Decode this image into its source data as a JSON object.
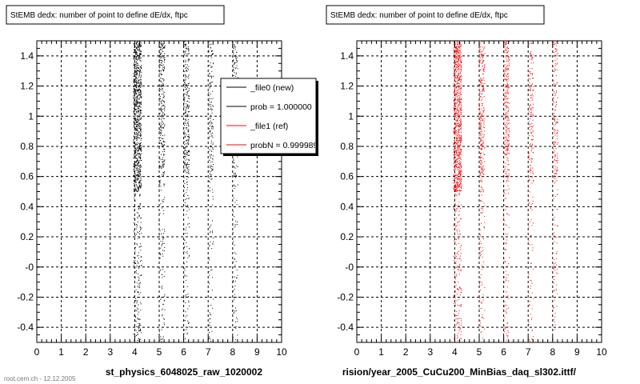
{
  "chart_data": [
    {
      "type": "scatter",
      "title": "StEMB dedx: number of point to define dE/dx, ftpc",
      "xlabel": "st_physics_6048025_raw_1020002",
      "ylabel": "",
      "xlim": [
        0,
        10
      ],
      "ylim": [
        -0.5,
        1.5
      ],
      "x_ticks": [
        0,
        1,
        2,
        3,
        4,
        5,
        6,
        7,
        8,
        9,
        10
      ],
      "y_ticks": [
        {
          "value": -0.4,
          "label": "-0.4"
        },
        {
          "value": -0.2,
          "label": "-0.2"
        },
        {
          "value": 0,
          "label": "-0"
        },
        {
          "value": 0.2,
          "label": "0.2"
        },
        {
          "value": 0.4,
          "label": "0.4"
        },
        {
          "value": 0.6,
          "label": "0.6"
        },
        {
          "value": 0.8,
          "label": "0.8"
        },
        {
          "value": 1,
          "label": "1"
        },
        {
          "value": 1.2,
          "label": "1.2"
        },
        {
          "value": 1.4,
          "label": "1.4"
        }
      ],
      "grid": true,
      "legend_position": "top-right",
      "series": [
        {
          "color": "#000000",
          "clusters": [
            {
              "x": 4.1,
              "y_range": [
                -0.5,
                1.5
              ],
              "density": "high",
              "dense_above": 0.5
            },
            {
              "x": 5.1,
              "y_range": [
                -0.5,
                1.5
              ],
              "density": "medium",
              "dense_above": 0.6
            },
            {
              "x": 6.1,
              "y_range": [
                -0.5,
                1.5
              ],
              "density": "medium",
              "dense_above": 0.6
            },
            {
              "x": 7.1,
              "y_range": [
                -0.5,
                1.5
              ],
              "density": "low",
              "dense_above": 0.6
            },
            {
              "x": 8.1,
              "y_range": [
                -0.5,
                1.5
              ],
              "density": "low",
              "dense_above": 0.6
            }
          ]
        }
      ],
      "legend": [
        {
          "label": "_file0 (new)",
          "color": "#000000"
        },
        {
          "label": "prob = 1.000000",
          "color": "#000000"
        },
        {
          "label": "_file1 (ref)",
          "color": "#ff0000"
        },
        {
          "label": "probN = 0.999989",
          "color": "#ff0000"
        }
      ]
    },
    {
      "type": "scatter",
      "title": "StEMB dedx: number of point to define dE/dx, ftpc",
      "xlabel": "rision/year_2005_CuCu200_MinBias_daq_sl302.ittf/",
      "ylabel": "",
      "xlim": [
        0,
        10
      ],
      "ylim": [
        -0.5,
        1.5
      ],
      "x_ticks": [
        0,
        1,
        2,
        3,
        4,
        5,
        6,
        7,
        8,
        9,
        10
      ],
      "y_ticks": [
        {
          "value": -0.4,
          "label": "-0.4"
        },
        {
          "value": -0.2,
          "label": "-0.2"
        },
        {
          "value": 0,
          "label": "-0"
        },
        {
          "value": 0.2,
          "label": "0.2"
        },
        {
          "value": 0.4,
          "label": "0.4"
        },
        {
          "value": 0.6,
          "label": "0.6"
        },
        {
          "value": 0.8,
          "label": "0.8"
        },
        {
          "value": 1,
          "label": "1"
        },
        {
          "value": 1.2,
          "label": "1.2"
        },
        {
          "value": 1.4,
          "label": "1.4"
        }
      ],
      "grid": true,
      "series": [
        {
          "color": "#ff0000",
          "clusters": [
            {
              "x": 4.1,
              "y_range": [
                -0.5,
                1.5
              ],
              "density": "high",
              "dense_above": 0.5
            },
            {
              "x": 5.1,
              "y_range": [
                -0.5,
                1.5
              ],
              "density": "medium",
              "dense_above": 0.6
            },
            {
              "x": 6.1,
              "y_range": [
                -0.5,
                1.5
              ],
              "density": "medium",
              "dense_above": 0.6
            },
            {
              "x": 7.1,
              "y_range": [
                -0.5,
                1.5
              ],
              "density": "low",
              "dense_above": 0.6
            },
            {
              "x": 8.1,
              "y_range": [
                -0.5,
                1.5
              ],
              "density": "low",
              "dense_above": 0.6
            }
          ]
        }
      ]
    }
  ],
  "footer": {
    "text": "root.cern.ch - 12.12.2005"
  }
}
